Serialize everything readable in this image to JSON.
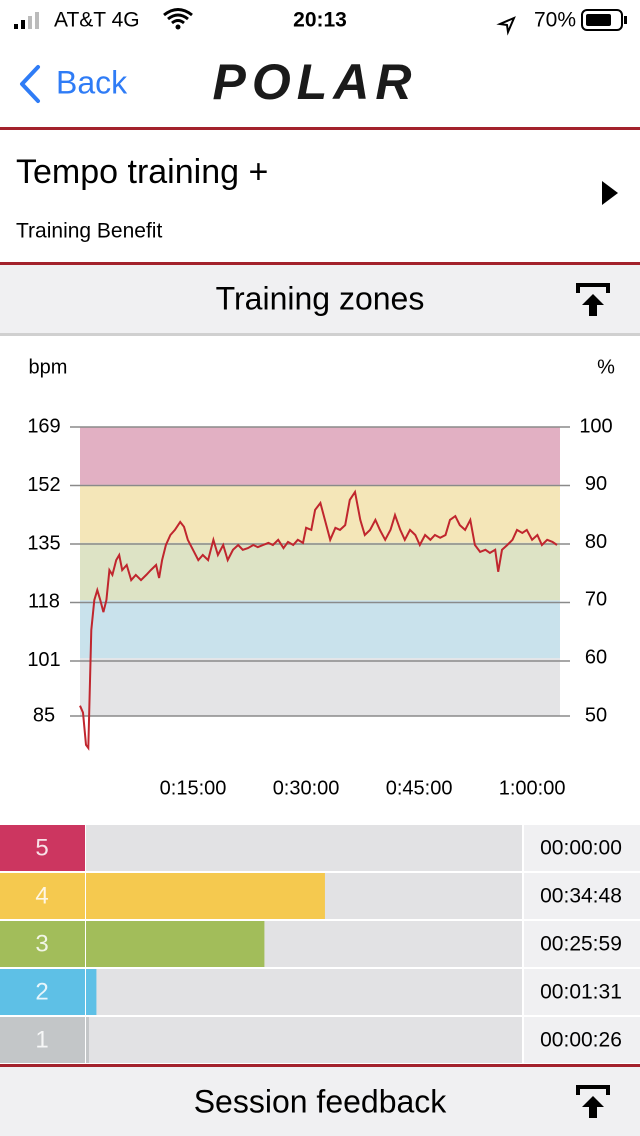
{
  "status_bar": {
    "carrier": "AT&T 4G",
    "time": "20:13",
    "battery": "70%"
  },
  "nav": {
    "back": "Back",
    "logo": "POLAR"
  },
  "header": {
    "title": "Tempo training +",
    "subtitle": "Training Benefit"
  },
  "section": {
    "title": "Training zones"
  },
  "footer": {
    "title": "Session feedback"
  },
  "chart_data": [
    {
      "type": "line",
      "y_label": "bpm",
      "y2_label": "%",
      "xlim": [
        0,
        63.7
      ],
      "xticks": [
        {
          "value": 15,
          "label": "0:15:00"
        },
        {
          "value": 30,
          "label": "0:30:00"
        },
        {
          "value": 45,
          "label": "0:45:00"
        },
        {
          "value": 60,
          "label": "1:00:00"
        }
      ],
      "ylim": [
        85,
        169
      ],
      "yticks": [
        85,
        101,
        118,
        135,
        152,
        169
      ],
      "y2lim": [
        50,
        100
      ],
      "y2ticks": [
        50,
        60,
        70,
        80,
        90,
        100
      ],
      "band_colors": [
        "#e4e4e6",
        "#c9e2ec",
        "#dde3c5",
        "#f4e6b8",
        "#e2b0c3"
      ],
      "grid": true,
      "x": [
        0,
        0.4,
        0.8,
        1.1,
        1.5,
        1.9,
        2.3,
        2.7,
        3.1,
        3.5,
        3.9,
        4.3,
        4.8,
        5.2,
        5.6,
        6.2,
        6.8,
        7.4,
        8.1,
        8.8,
        9.4,
        10.1,
        10.5,
        10.9,
        11.4,
        12,
        12.6,
        13.3,
        13.8,
        14.3,
        15,
        15.7,
        16.3,
        17,
        17.7,
        18.3,
        19,
        19.6,
        20.3,
        21,
        21.6,
        22.3,
        23,
        23.6,
        24.3,
        25,
        25.6,
        26.3,
        27,
        27.6,
        28.3,
        28.9,
        29.6,
        30,
        30.7,
        31.2,
        31.9,
        32.5,
        33.2,
        33.9,
        34.5,
        35.2,
        35.8,
        36.5,
        37.2,
        37.8,
        38.5,
        39.2,
        39.8,
        40.5,
        41.2,
        41.8,
        42.5,
        43.1,
        43.8,
        44.5,
        45.1,
        45.8,
        46.5,
        47.1,
        47.8,
        48.5,
        49.1,
        49.8,
        50.4,
        51.1,
        51.8,
        52.4,
        53.1,
        53.8,
        54.4,
        55.1,
        55.5,
        56,
        56.7,
        57.4,
        58,
        58.7,
        59.3,
        60,
        60.7,
        61.3,
        62,
        62.7,
        63.3
      ],
      "series": [
        {
          "name": "Heart rate",
          "color": "#c0262e",
          "values": [
            88,
            86,
            76.6,
            75.7,
            110,
            118.7,
            121.6,
            118.7,
            115.2,
            118.7,
            127.4,
            126,
            130.3,
            131.8,
            127.4,
            128.9,
            124.5,
            126,
            124.5,
            126,
            127.4,
            128.9,
            125.1,
            130.3,
            134.7,
            137.6,
            139.1,
            141.4,
            140,
            136.2,
            133.3,
            130.3,
            131.8,
            130.3,
            136.2,
            131.8,
            134.7,
            130.3,
            133.3,
            134.7,
            133.3,
            133.8,
            134.7,
            134.1,
            134.7,
            135.3,
            134.7,
            136.2,
            133.8,
            135.6,
            134.7,
            136.2,
            135.3,
            139.7,
            139.1,
            144.9,
            146.9,
            142,
            136.2,
            139.7,
            139.1,
            140.5,
            147.8,
            150.1,
            142,
            137.6,
            139.1,
            142,
            139.1,
            136.2,
            139.1,
            143.4,
            139.1,
            136.2,
            139.1,
            137.6,
            134.7,
            137.6,
            136.2,
            137.6,
            136.8,
            137.6,
            142,
            143.1,
            140.5,
            139.1,
            142,
            134.7,
            132.7,
            133.3,
            132.4,
            133.3,
            126.9,
            133.3,
            134.7,
            136.2,
            139.1,
            138.2,
            139.1,
            136.2,
            137.6,
            134.7,
            136.2,
            135.6,
            134.7
          ]
        }
      ]
    },
    {
      "type": "hbar",
      "categories": [
        "5",
        "4",
        "3",
        "2",
        "1"
      ],
      "colors": [
        "#cc3660",
        "#f5c94f",
        "#a2bd5a",
        "#5ec0e6",
        "#c3c6c8"
      ],
      "values": [
        0,
        2088,
        1559,
        91,
        26
      ],
      "value_labels": [
        "00:00:00",
        "00:34:48",
        "00:25:59",
        "00:01:31",
        "00:00:26"
      ],
      "xlim": [
        0,
        3810
      ]
    }
  ]
}
